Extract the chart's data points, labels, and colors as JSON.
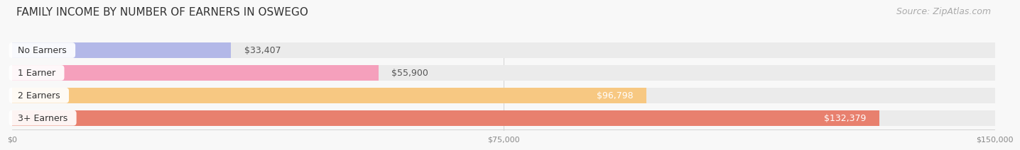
{
  "title": "FAMILY INCOME BY NUMBER OF EARNERS IN OSWEGO",
  "source": "Source: ZipAtlas.com",
  "categories": [
    "No Earners",
    "1 Earner",
    "2 Earners",
    "3+ Earners"
  ],
  "values": [
    33407,
    55900,
    96798,
    132379
  ],
  "labels": [
    "$33,407",
    "$55,900",
    "$96,798",
    "$132,379"
  ],
  "bar_colors": [
    "#b3b8e8",
    "#f5a0bc",
    "#f7c882",
    "#e8806e"
  ],
  "bar_bg_color": "#ebebeb",
  "label_colors": [
    "#555555",
    "#555555",
    "#ffffff",
    "#ffffff"
  ],
  "xlim": [
    0,
    150000
  ],
  "xticks": [
    0,
    75000,
    150000
  ],
  "xticklabels": [
    "$0",
    "$75,000",
    "$150,000"
  ],
  "title_fontsize": 11,
  "source_fontsize": 9,
  "label_fontsize": 9,
  "category_fontsize": 9,
  "background_color": "#f8f8f8",
  "bar_bg_color2": "#e4e4e4"
}
